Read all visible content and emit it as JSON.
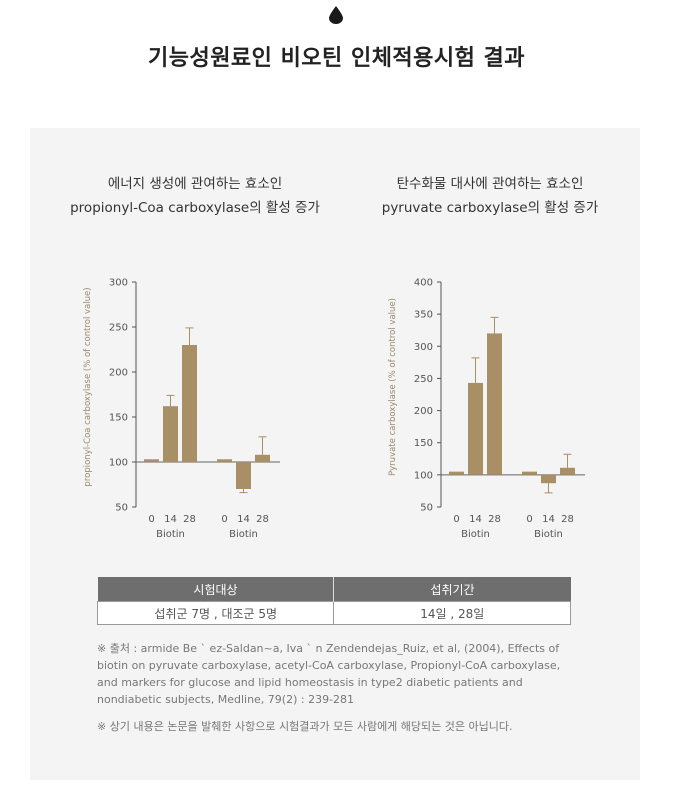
{
  "header": {
    "title": "기능성원료인 비오틴 인체적용시험 결과"
  },
  "chart_data": [
    {
      "type": "bar",
      "title_lines": [
        "에너지 생성에 관여하는 효소인",
        "propionyl-Coa carboxylase의 활성 증가"
      ],
      "ylabel": "propionyl-Coa carboxylase (% of control value)",
      "ylim": [
        50,
        300
      ],
      "yticks": [
        "300",
        "250",
        "200",
        "150",
        "100",
        "50"
      ],
      "baseline": 100,
      "groups": [
        {
          "label": "Biotin",
          "categories": [
            "0",
            "14",
            "28"
          ],
          "values": [
            103,
            162,
            230
          ],
          "errors": [
            null,
            174,
            249
          ]
        },
        {
          "label": "Biotin",
          "categories": [
            "0",
            "14",
            "28"
          ],
          "values": [
            103,
            70,
            108
          ],
          "errors": [
            null,
            66,
            128
          ]
        }
      ],
      "bar_color": "#a88f66"
    },
    {
      "type": "bar",
      "title_lines": [
        "탄수화물 대사에 관여하는 효소인",
        "pyruvate carboxylase의 활성 증가"
      ],
      "ylabel": "Pyruvate carboxylase (% of control value)",
      "ylim": [
        50,
        400
      ],
      "yticks": [
        "400",
        "350",
        "300",
        "250",
        "200",
        "150",
        "100",
        "50"
      ],
      "baseline": 100,
      "groups": [
        {
          "label": "Biotin",
          "categories": [
            "0",
            "14",
            "28"
          ],
          "values": [
            105,
            243,
            320
          ],
          "errors": [
            null,
            282,
            345
          ]
        },
        {
          "label": "Biotin",
          "categories": [
            "0",
            "14",
            "28"
          ],
          "values": [
            105,
            87,
            111
          ],
          "errors": [
            null,
            72,
            132
          ]
        }
      ],
      "bar_color": "#a88f66"
    }
  ],
  "table": {
    "headers": [
      "시험대상",
      "섭취기간"
    ],
    "row": [
      "섭취군 7명 , 대조군 5명",
      "14일 , 28일"
    ]
  },
  "reference": "※ 출처 : armide Be ` ez-Saldan~a, Iva ` n Zendendejas_Ruiz, et al, (2004), Effects of biotin on pyruvate carboxylase, acetyl-CoA carboxylase, Propionyl-CoA carboxylase, and markers for glucose and lipid homeostasis in type2 diabetic patients and nondiabetic subjects, Medline, 79(2) : 239-281",
  "disclaimer": "※ 상기 내용은 논문을 발췌한 사항으로 시험결과가 모든 사람에게 해당되는 것은 아닙니다."
}
